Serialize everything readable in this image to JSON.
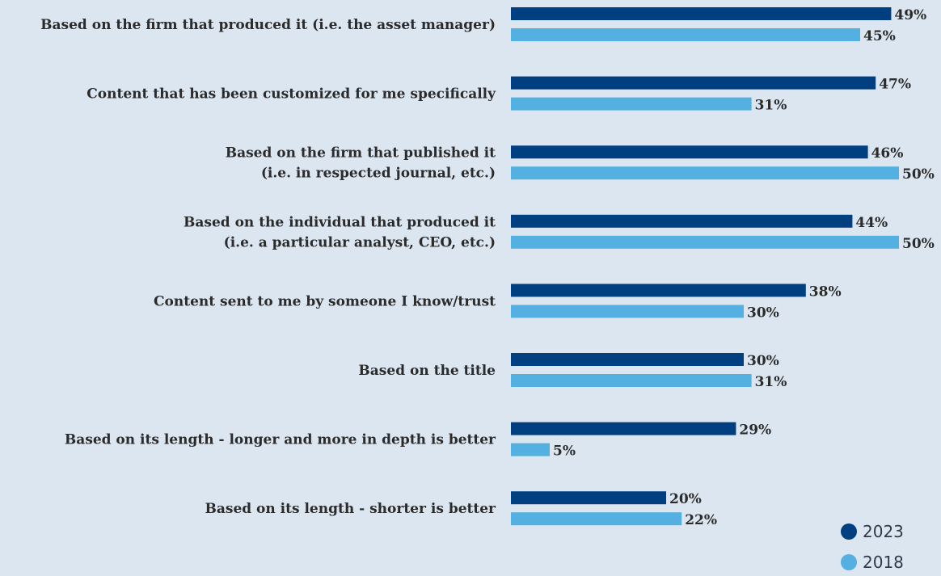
{
  "chart_data": {
    "type": "bar",
    "orientation": "horizontal",
    "title": "",
    "xlabel": "",
    "ylabel": "",
    "xlim": [
      0,
      50
    ],
    "grid": false,
    "legend_position": "bottom-right",
    "categories": [
      [
        "Based on the firm that produced it (i.e. the asset manager)"
      ],
      [
        "Content that has been customized for me specifically"
      ],
      [
        "Based on the firm that published it",
        "(i.e. in respected journal, etc.)"
      ],
      [
        "Based on the individual that produced it",
        "(i.e. a particular analyst, CEO, etc.)"
      ],
      [
        "Content sent to me by someone I know/trust"
      ],
      [
        "Based on the title"
      ],
      [
        "Based on its length - longer and more in depth is better"
      ],
      [
        "Based on its length - shorter is better"
      ]
    ],
    "series": [
      {
        "name": "2023",
        "color": "#003f80",
        "values": [
          49,
          47,
          46,
          44,
          38,
          30,
          29,
          20
        ]
      },
      {
        "name": "2018",
        "color": "#54b0e0",
        "values": [
          45,
          31,
          50,
          50,
          30,
          31,
          5,
          22
        ]
      }
    ],
    "value_suffix": "%"
  }
}
